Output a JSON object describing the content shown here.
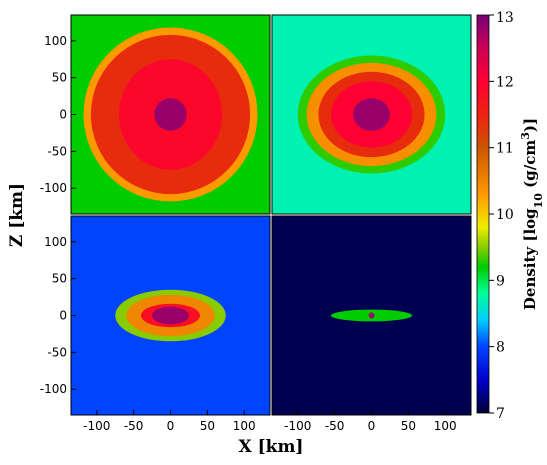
{
  "chart_data": {
    "type": "heatmap",
    "panels": [
      {
        "panel": "top-left",
        "maps": [
          {
            "kind": "disk",
            "rx": 118,
            "rz": 118,
            "value": 10.3
          },
          {
            "kind": "disk",
            "rx": 108,
            "rz": 108,
            "value": 11.4
          },
          {
            "kind": "disk",
            "rx": 70,
            "rz": 75,
            "value": 11.9
          },
          {
            "kind": "disk",
            "rx": 22,
            "rz": 22,
            "value": 12.8
          }
        ],
        "background": 9.2
      },
      {
        "panel": "top-right",
        "maps": [
          {
            "kind": "disk",
            "rx": 100,
            "rz": 80,
            "value": 9.3
          },
          {
            "kind": "disk",
            "rx": 88,
            "rz": 70,
            "value": 10.4
          },
          {
            "kind": "disk",
            "rx": 72,
            "rz": 58,
            "value": 11.4
          },
          {
            "kind": "disk",
            "rx": 55,
            "rz": 45,
            "value": 12.0
          },
          {
            "kind": "disk",
            "rx": 25,
            "rz": 22,
            "value": 12.8
          }
        ],
        "background": 8.7
      },
      {
        "panel": "bottom-left",
        "maps": [
          {
            "kind": "disk",
            "rx": 75,
            "rz": 35,
            "value": 9.5
          },
          {
            "kind": "disk",
            "rx": 60,
            "rz": 28,
            "value": 10.5
          },
          {
            "kind": "disk",
            "rx": 40,
            "rz": 16,
            "value": 11.8
          },
          {
            "kind": "disk",
            "rx": 25,
            "rz": 12,
            "value": 12.8
          }
        ],
        "background": 8.0
      },
      {
        "panel": "bottom-right",
        "maps": [
          {
            "kind": "disk",
            "rx": 55,
            "rz": 8,
            "value": 9.2
          },
          {
            "kind": "disk",
            "rx": 4,
            "rz": 4,
            "value": 12.8
          }
        ],
        "background": 7.1
      }
    ],
    "x_ticks_left": [
      "-100",
      "-50",
      "0",
      "50",
      "100"
    ],
    "x_ticks_right": [
      "-100",
      "-50",
      "0",
      "50",
      "100"
    ],
    "z_ticks_top": [
      "100",
      "50",
      "0",
      "-50",
      "-100"
    ],
    "z_ticks_bottom": [
      "100",
      "50",
      "0",
      "-50",
      "-100"
    ],
    "xlabel": "X [km]",
    "ylabel": "Z [km]",
    "xlim": [
      -135,
      135
    ],
    "zlim": [
      -135,
      135
    ],
    "colorbar": {
      "label": "Density [log10 (g/cm3)]",
      "label_main": "Density [log",
      "label_sub": "10",
      "label_mid": " (g/cm",
      "label_sup": "3",
      "label_end": ")]",
      "range": [
        7,
        13
      ],
      "ticks": [
        "7",
        "8",
        "9",
        "10",
        "11",
        "12",
        "13"
      ],
      "stops": [
        {
          "v": 7.0,
          "c": "#000033"
        },
        {
          "v": 7.5,
          "c": "#0000cc"
        },
        {
          "v": 8.0,
          "c": "#0044ff"
        },
        {
          "v": 8.4,
          "c": "#00ccff"
        },
        {
          "v": 8.8,
          "c": "#00ff99"
        },
        {
          "v": 9.2,
          "c": "#00cc00"
        },
        {
          "v": 9.5,
          "c": "#88cc00"
        },
        {
          "v": 9.8,
          "c": "#eeee00"
        },
        {
          "v": 10.3,
          "c": "#ff9900"
        },
        {
          "v": 11.0,
          "c": "#cc5500"
        },
        {
          "v": 11.5,
          "c": "#ee2211"
        },
        {
          "v": 12.0,
          "c": "#ff0033"
        },
        {
          "v": 12.5,
          "c": "#cc0055"
        },
        {
          "v": 13.0,
          "c": "#770077"
        }
      ]
    }
  }
}
